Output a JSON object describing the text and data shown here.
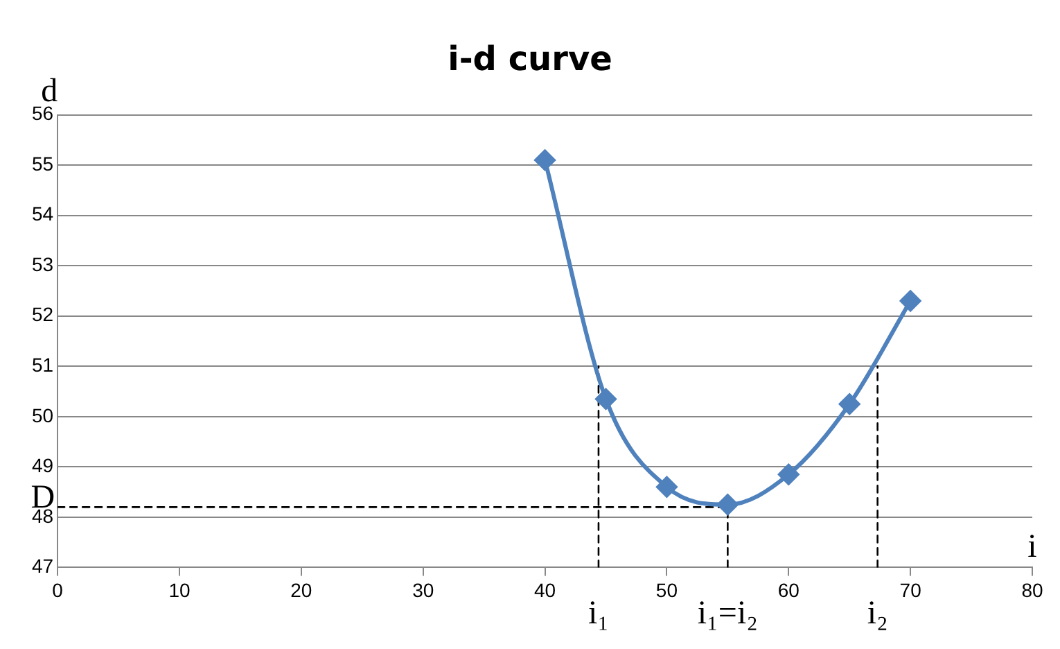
{
  "chart_data": {
    "type": "line",
    "title": "i-d curve",
    "xlabel": "i",
    "ylabel": "d",
    "xlim": [
      0,
      80
    ],
    "xticks": [
      0,
      10,
      20,
      30,
      40,
      50,
      60,
      70,
      80
    ],
    "ylim": [
      47,
      56
    ],
    "yticks": [
      47,
      48,
      49,
      50,
      51,
      52,
      53,
      54,
      55,
      56
    ],
    "grid": "y",
    "legend": false,
    "series": [
      {
        "color": "#4f81bd",
        "x": [
          40,
          45,
          50,
          55,
          60,
          65,
          70
        ],
        "values": [
          55.1,
          50.35,
          48.6,
          48.25,
          48.85,
          50.25,
          52.3
        ],
        "marker": "diamond",
        "line_style": "solid"
      },
      {
        "color": "#000000",
        "x": [
          0,
          55
        ],
        "values": [
          48.2,
          48.2
        ],
        "marker": "none",
        "line_style": "dashed"
      },
      {
        "color": "#000000",
        "x": [
          44.4,
          44.4
        ],
        "values": [
          47,
          51
        ],
        "marker": "none",
        "line_style": "dashed"
      },
      {
        "color": "#000000",
        "x": [
          55,
          55
        ],
        "values": [
          47,
          48.2
        ],
        "marker": "none",
        "line_style": "dashed"
      },
      {
        "color": "#000000",
        "x": [
          67.3,
          67.3
        ],
        "values": [
          47,
          51
        ],
        "marker": "none",
        "line_style": "dashed"
      }
    ],
    "annotations": [
      {
        "text": "D",
        "x": 0,
        "y": 48.2
      },
      {
        "text": "i₁",
        "x": 44.4,
        "y": 47
      },
      {
        "text": "i₁=i₂",
        "x": 55,
        "y": 47
      },
      {
        "text": "i₂",
        "x": 67.3,
        "y": 47
      }
    ]
  }
}
